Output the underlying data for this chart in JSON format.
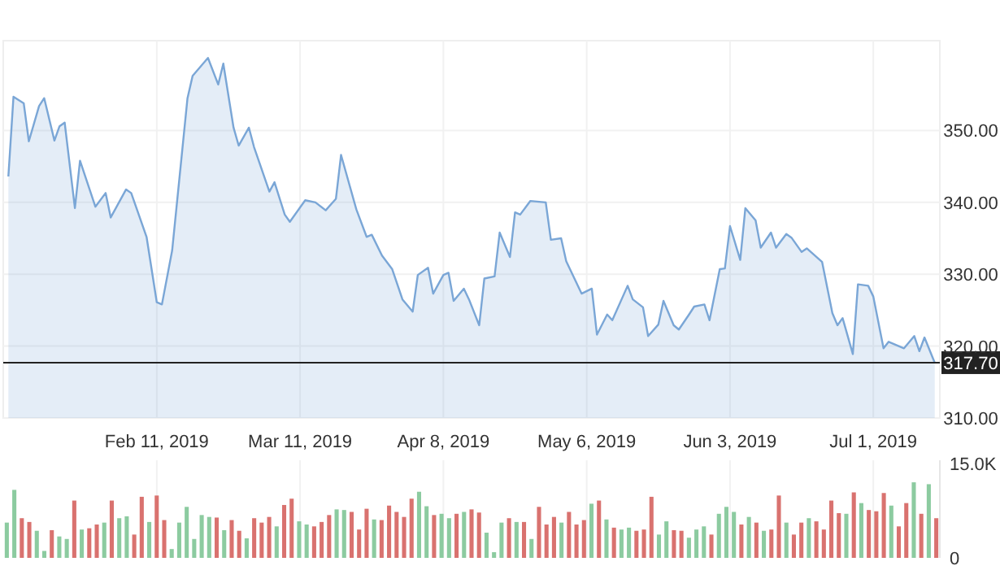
{
  "chart_data": [
    {
      "type": "area",
      "x": [
        "2019-01-13",
        "2019-01-14",
        "2019-01-16",
        "2019-01-17",
        "2019-01-19",
        "2019-01-20",
        "2019-01-22",
        "2019-01-23",
        "2019-01-24",
        "2019-01-26",
        "2019-01-27",
        "2019-01-30",
        "2019-02-01",
        "2019-02-02",
        "2019-02-05",
        "2019-02-06",
        "2019-02-09",
        "2019-02-11",
        "2019-02-12",
        "2019-02-14",
        "2019-02-17",
        "2019-02-18",
        "2019-02-21",
        "2019-02-23",
        "2019-02-24",
        "2019-02-26",
        "2019-02-27",
        "2019-03-01",
        "2019-03-02",
        "2019-03-05",
        "2019-03-06",
        "2019-03-08",
        "2019-03-09",
        "2019-03-12",
        "2019-03-14",
        "2019-03-16",
        "2019-03-18",
        "2019-03-19",
        "2019-03-22",
        "2019-03-24",
        "2019-03-25",
        "2019-03-27",
        "2019-03-29",
        "2019-03-31",
        "2019-04-02",
        "2019-04-03",
        "2019-04-05",
        "2019-04-06",
        "2019-04-08",
        "2019-04-09",
        "2019-04-10",
        "2019-04-12",
        "2019-04-13",
        "2019-04-15",
        "2019-04-16",
        "2019-04-18",
        "2019-04-19",
        "2019-04-21",
        "2019-04-22",
        "2019-04-23",
        "2019-04-25",
        "2019-04-28",
        "2019-04-29",
        "2019-05-01",
        "2019-05-02",
        "2019-05-05",
        "2019-05-07",
        "2019-05-08",
        "2019-05-10",
        "2019-05-11",
        "2019-05-14",
        "2019-05-15",
        "2019-05-17",
        "2019-05-18",
        "2019-05-20",
        "2019-05-21",
        "2019-05-23",
        "2019-05-24",
        "2019-05-26",
        "2019-05-27",
        "2019-05-29",
        "2019-05-30",
        "2019-06-01",
        "2019-06-02",
        "2019-06-03",
        "2019-06-05",
        "2019-06-06",
        "2019-06-08",
        "2019-06-09",
        "2019-06-11",
        "2019-06-12",
        "2019-06-14",
        "2019-06-15",
        "2019-06-17",
        "2019-06-18",
        "2019-06-21",
        "2019-06-23",
        "2019-06-24",
        "2019-06-25",
        "2019-06-27",
        "2019-06-28",
        "2019-06-30",
        "2019-07-01",
        "2019-07-03",
        "2019-07-04",
        "2019-07-07",
        "2019-07-09",
        "2019-07-10",
        "2019-07-11",
        "2019-07-13"
      ],
      "series": [
        {
          "color": "#7aa6d6",
          "values": [
            343.6,
            354.7,
            353.8,
            348.5,
            353.4,
            354.5,
            348.6,
            350.6,
            351.1,
            339.2,
            345.8,
            339.4,
            341.3,
            337.9,
            341.8,
            341.3,
            335.2,
            326.1,
            325.8,
            333.3,
            354.5,
            357.6,
            360.1,
            356.4,
            359.3,
            350.4,
            347.9,
            350.4,
            347.7,
            341.5,
            342.8,
            338.3,
            337.3,
            340.3,
            340.0,
            338.9,
            340.5,
            346.6,
            339.0,
            335.2,
            335.5,
            332.6,
            330.7,
            326.5,
            324.8,
            329.9,
            330.9,
            327.3,
            329.9,
            330.2,
            326.3,
            328.0,
            326.5,
            322.9,
            329.4,
            329.7,
            335.8,
            332.4,
            338.6,
            338.3,
            340.2,
            340.0,
            334.8,
            335.0,
            331.8,
            327.3,
            328.0,
            321.6,
            324.4,
            323.6,
            328.4,
            326.5,
            325.4,
            321.4,
            323.0,
            326.3,
            322.9,
            322.3,
            324.4,
            325.5,
            325.8,
            323.6,
            330.7,
            330.8,
            336.7,
            332.0,
            339.2,
            337.5,
            333.7,
            335.8,
            333.7,
            335.6,
            335.1,
            333.1,
            333.6,
            331.7,
            324.6,
            322.9,
            323.9,
            318.9,
            328.6,
            328.4,
            326.9,
            319.7,
            320.6,
            319.7,
            321.4,
            319.3,
            321.2,
            317.7
          ]
        }
      ],
      "xlim": [
        "2019-01-12",
        "2019-07-14"
      ],
      "xticks": [
        {
          "value": "2019-02-11",
          "label": "Feb 11, 2019"
        },
        {
          "value": "2019-03-11",
          "label": "Mar 11, 2019"
        },
        {
          "value": "2019-04-08",
          "label": "Apr 8, 2019"
        },
        {
          "value": "2019-05-06",
          "label": "May 6, 2019"
        },
        {
          "value": "2019-06-03",
          "label": "Jun 3, 2019"
        },
        {
          "value": "2019-07-01",
          "label": "Jul 1, 2019"
        }
      ],
      "ylim": [
        310,
        362.5
      ],
      "yticks": [
        {
          "value": 310,
          "label": "310.00"
        },
        {
          "value": 320,
          "label": "320.00"
        },
        {
          "value": 330,
          "label": "330.00"
        },
        {
          "value": 340,
          "label": "340.00"
        },
        {
          "value": 350,
          "label": "350.00"
        }
      ],
      "ref_lines": [
        {
          "axis": "y",
          "value": 317.7,
          "label": "317.70",
          "color": "#222222"
        }
      ],
      "grid": true
    },
    {
      "type": "bar",
      "categories": [
        null,
        null,
        null,
        null,
        null,
        null,
        null,
        null,
        null,
        null,
        null,
        null,
        null,
        null,
        null,
        null,
        null,
        null,
        null,
        null,
        null,
        null,
        null,
        null,
        null,
        null,
        null,
        null,
        null,
        null,
        null,
        null,
        null,
        null,
        null,
        null,
        null,
        null,
        null,
        null,
        null,
        null,
        null,
        null,
        null,
        null,
        null,
        null,
        null,
        null,
        null,
        null,
        null,
        null,
        null,
        null,
        null,
        null,
        null,
        null,
        null,
        null,
        null,
        null,
        null,
        null,
        null,
        null,
        null,
        null,
        null,
        null,
        null,
        null,
        null,
        null,
        null,
        null,
        null,
        null,
        null,
        null,
        null,
        null,
        null,
        null,
        null,
        null,
        null,
        null,
        null,
        null,
        null,
        null,
        null,
        null,
        null,
        null,
        null,
        null,
        null,
        null,
        null,
        null,
        null,
        null,
        null,
        null,
        null,
        null,
        null,
        null,
        null,
        null,
        null,
        null,
        null,
        null,
        null,
        null,
        null,
        null,
        null,
        null,
        null
      ],
      "values": [
        5600,
        10800,
        6300,
        5700,
        4300,
        1100,
        4400,
        3400,
        3000,
        9100,
        4500,
        4700,
        5300,
        5600,
        9100,
        6300,
        6600,
        3700,
        9700,
        5700,
        9900,
        6000,
        1400,
        5600,
        8100,
        3000,
        6800,
        6500,
        6400,
        4400,
        6000,
        4300,
        3100,
        6300,
        5600,
        6500,
        5000,
        8400,
        9400,
        5800,
        5300,
        5000,
        5700,
        6800,
        7700,
        7600,
        7300,
        4500,
        7800,
        6100,
        6000,
        8300,
        7300,
        6500,
        9400,
        10500,
        8200,
        6800,
        7000,
        6300,
        7000,
        7300,
        7700,
        7200,
        4000,
        900,
        5600,
        6300,
        5700,
        5700,
        3000,
        8100,
        5300,
        6500,
        5600,
        7300,
        5300,
        6000,
        8600,
        9100,
        6100,
        4800,
        4500,
        4800,
        4300,
        4500,
        9700,
        3700,
        5800,
        4400,
        4300,
        3200,
        4500,
        5000,
        3700,
        7000,
        8100,
        7300,
        5300,
        6500,
        5600,
        4300,
        4500,
        9900,
        5600,
        3700,
        5600,
        6300,
        5800,
        4500,
        9100,
        7100,
        7000,
        10400,
        8700,
        7600,
        7400,
        10300,
        8300,
        5000,
        8700,
        12000,
        7000,
        11700,
        6300
      ],
      "colors": [
        "#8ccba0",
        "#8ccba0",
        "#d9726f",
        "#d9726f",
        "#8ccba0",
        "#8ccba0",
        "#d9726f",
        "#8ccba0",
        "#8ccba0",
        "#d9726f",
        "#8ccba0",
        "#d9726f",
        "#d9726f",
        "#8ccba0",
        "#d9726f",
        "#8ccba0",
        "#8ccba0",
        "#d9726f",
        "#d9726f",
        "#8ccba0",
        "#d9726f",
        "#d9726f",
        "#8ccba0",
        "#8ccba0",
        "#8ccba0",
        "#8ccba0",
        "#8ccba0",
        "#8ccba0",
        "#d9726f",
        "#8ccba0",
        "#d9726f",
        "#d9726f",
        "#8ccba0",
        "#d9726f",
        "#d9726f",
        "#d9726f",
        "#8ccba0",
        "#d9726f",
        "#d9726f",
        "#8ccba0",
        "#8ccba0",
        "#d9726f",
        "#d9726f",
        "#d9726f",
        "#8ccba0",
        "#8ccba0",
        "#d9726f",
        "#d9726f",
        "#d9726f",
        "#8ccba0",
        "#d9726f",
        "#d9726f",
        "#d9726f",
        "#d9726f",
        "#d9726f",
        "#8ccba0",
        "#8ccba0",
        "#d9726f",
        "#8ccba0",
        "#8ccba0",
        "#d9726f",
        "#8ccba0",
        "#d9726f",
        "#d9726f",
        "#8ccba0",
        "#8ccba0",
        "#8ccba0",
        "#d9726f",
        "#8ccba0",
        "#d9726f",
        "#8ccba0",
        "#d9726f",
        "#d9726f",
        "#d9726f",
        "#8ccba0",
        "#d9726f",
        "#d9726f",
        "#d9726f",
        "#8ccba0",
        "#d9726f",
        "#8ccba0",
        "#d9726f",
        "#8ccba0",
        "#8ccba0",
        "#d9726f",
        "#d9726f",
        "#d9726f",
        "#8ccba0",
        "#8ccba0",
        "#d9726f",
        "#d9726f",
        "#8ccba0",
        "#8ccba0",
        "#8ccba0",
        "#d9726f",
        "#8ccba0",
        "#8ccba0",
        "#8ccba0",
        "#d9726f",
        "#8ccba0",
        "#d9726f",
        "#8ccba0",
        "#d9726f",
        "#d9726f",
        "#8ccba0",
        "#d9726f",
        "#d9726f",
        "#8ccba0",
        "#d9726f",
        "#d9726f",
        "#d9726f",
        "#d9726f",
        "#8ccba0",
        "#d9726f",
        "#8ccba0",
        "#d9726f",
        "#d9726f",
        "#d9726f",
        "#8ccba0",
        "#d9726f",
        "#d9726f",
        "#8ccba0",
        "#d9726f",
        "#8ccba0",
        "#d9726f"
      ],
      "ylim": [
        0,
        15500
      ],
      "yticks": [
        0,
        {
          "value": 15000,
          "label": "15.0K"
        }
      ],
      "tick_labels": "y",
      "grid": "x"
    }
  ]
}
